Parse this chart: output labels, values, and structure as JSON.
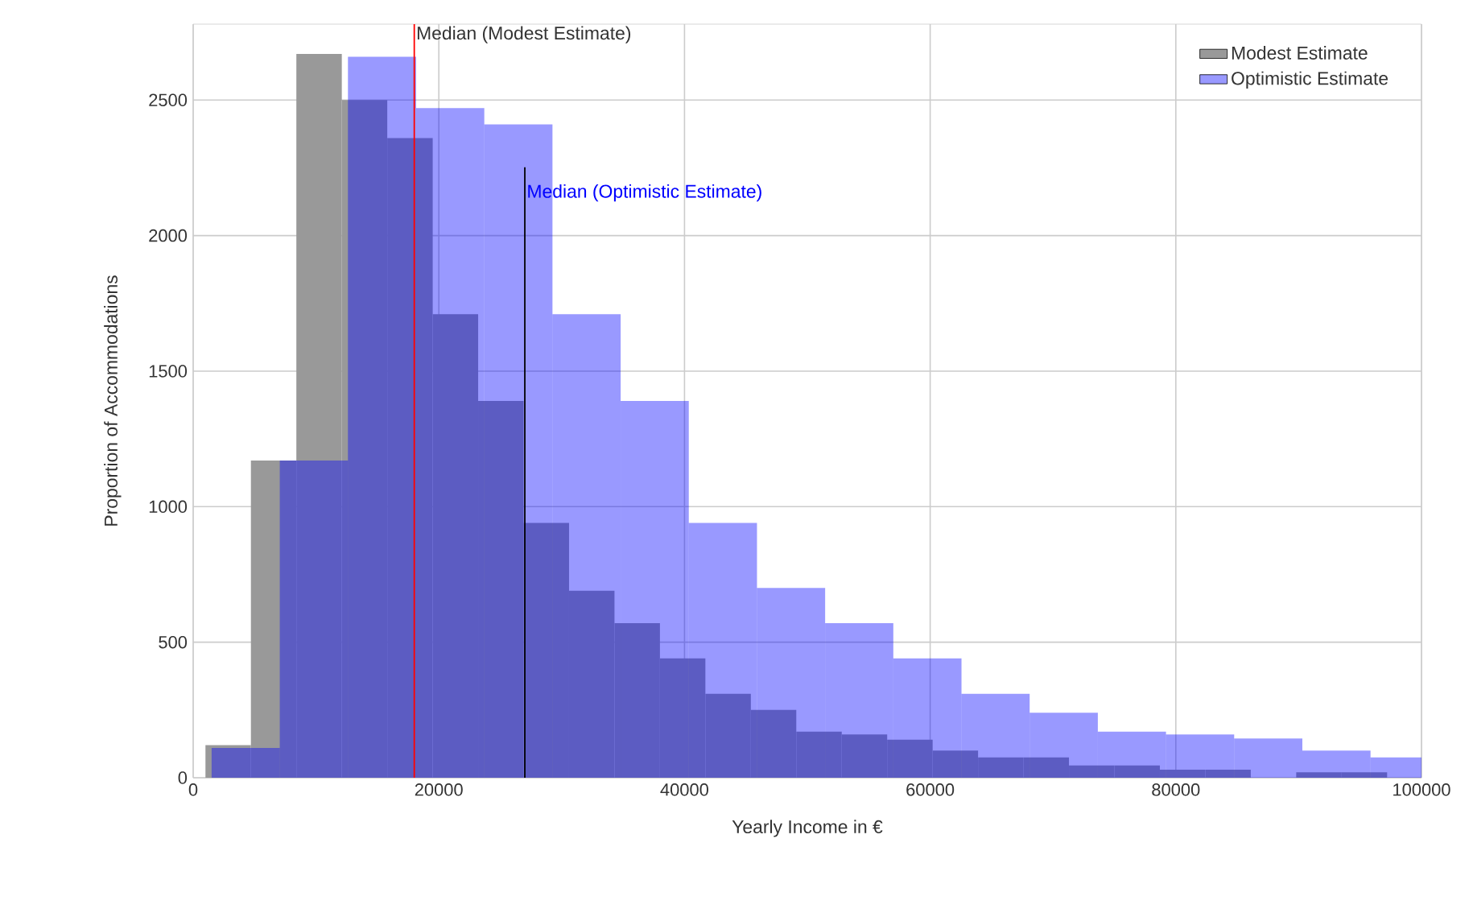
{
  "chart_data": {
    "type": "histogram",
    "xlabel": "Yearly Income in €",
    "ylabel": "Proportion of Accommodations",
    "bins": [
      1000,
      4700,
      8400,
      12100,
      15800,
      19500,
      23200,
      26900,
      30600,
      34300,
      38000,
      41700,
      45400,
      49100,
      52800,
      56500,
      60200,
      63900,
      67600,
      71300,
      75000,
      78700,
      82400,
      86100,
      89800,
      93500,
      97200
    ],
    "series": [
      {
        "name": "Modest Estimate",
        "color": "#999999",
        "values": [
          120,
          1170,
          2670,
          2500,
          2360,
          1710,
          1390,
          940,
          690,
          570,
          440,
          310,
          250,
          170,
          160,
          140,
          100,
          75,
          75,
          45,
          45,
          30,
          30,
          0,
          20,
          20
        ]
      },
      {
        "name": "Optimistic Estimate",
        "color": "#0000ff",
        "bins": [
          1500,
          7050,
          12600,
          18150,
          23700,
          29250,
          34800,
          40350,
          45900,
          51450,
          57000,
          62550,
          68100,
          73650,
          79200,
          84750,
          90300,
          95850,
          100000
        ],
        "values": [
          110,
          1170,
          2660,
          2470,
          2410,
          1710,
          1390,
          940,
          700,
          570,
          440,
          310,
          240,
          170,
          160,
          145,
          100,
          75
        ]
      }
    ],
    "xlim": [
      0,
      100000
    ],
    "ylim": [
      0,
      2780
    ],
    "xticks": [
      0,
      20000,
      40000,
      60000,
      80000,
      100000
    ],
    "yticks": [
      0,
      500,
      1000,
      1500,
      2000,
      2500
    ],
    "ref_lines": [
      {
        "axis": "x",
        "value": 18000,
        "label": "Median (Modest Estimate)",
        "color": "#ff0000"
      },
      {
        "axis": "x",
        "value": 27000,
        "label": "Median (Optimistic Estimate)",
        "color": "#000000"
      }
    ],
    "grid": true,
    "legend": "top right"
  }
}
